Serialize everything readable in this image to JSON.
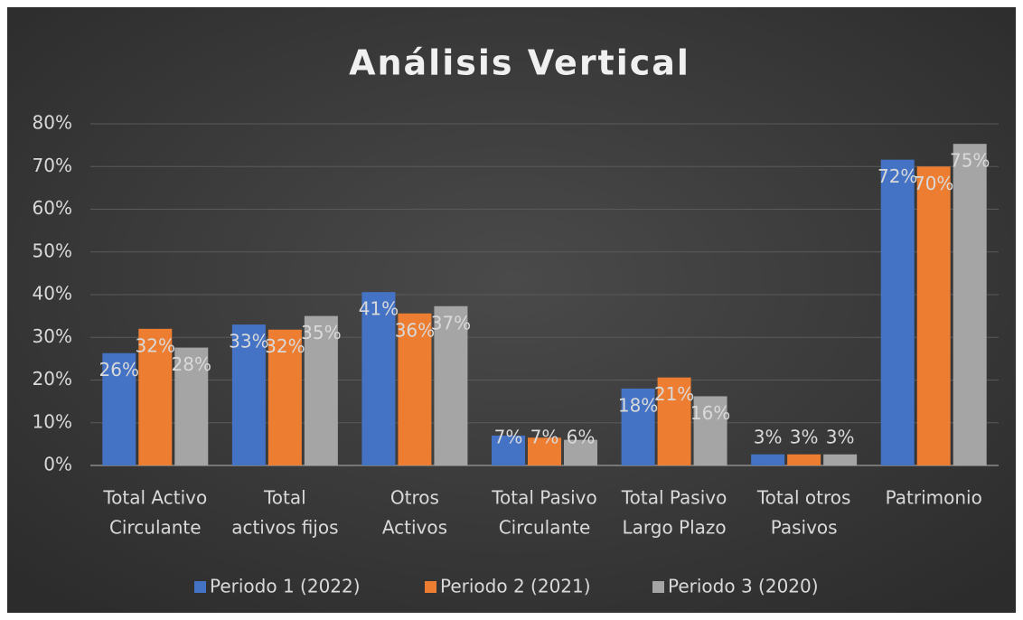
{
  "chart_data": {
    "type": "bar",
    "title": "Análisis Vertical",
    "categories": [
      [
        "Total Activo",
        "Circulante"
      ],
      [
        "Total",
        "activos fijos"
      ],
      [
        "Otros",
        "Activos"
      ],
      [
        "Total Pasivo",
        "Circulante"
      ],
      [
        "Total Pasivo",
        "Largo Plazo"
      ],
      [
        "Total otros",
        "Pasivos"
      ],
      [
        "Patrimonio"
      ]
    ],
    "series": [
      {
        "name": "Periodo 1 (2022)",
        "color": "#4472c4",
        "values": [
          26.3,
          33,
          40.6,
          7,
          18,
          2.6,
          71.6
        ],
        "value_labels": [
          "26%",
          "33%",
          "41%",
          "7%",
          "18%",
          "3%",
          "72%"
        ]
      },
      {
        "name": "Periodo 2 (2021)",
        "color": "#ed7d31",
        "values": [
          32,
          31.8,
          35.6,
          6.5,
          20.6,
          2.6,
          70
        ],
        "value_labels": [
          "32%",
          "32%",
          "36%",
          "7%",
          "21%",
          "3%",
          "70%"
        ]
      },
      {
        "name": "Periodo 3 (2020)",
        "color": "#a5a5a5",
        "values": [
          27.6,
          35,
          37.3,
          6,
          16.2,
          2.6,
          75.3
        ],
        "value_labels": [
          "28%",
          "35%",
          "37%",
          "6%",
          "16%",
          "3%",
          "75%"
        ]
      }
    ],
    "ylim": [
      0,
      80
    ],
    "yticks": [
      {
        "value": 0,
        "label": "0%"
      },
      {
        "value": 10,
        "label": "10%"
      },
      {
        "value": 20,
        "label": "20%"
      },
      {
        "value": 30,
        "label": "30%"
      },
      {
        "value": 40,
        "label": "40%"
      },
      {
        "value": 50,
        "label": "50%"
      },
      {
        "value": 60,
        "label": "60%"
      },
      {
        "value": 70,
        "label": "70%"
      },
      {
        "value": 80,
        "label": "80%"
      }
    ],
    "grid": true,
    "legend": "bottom"
  }
}
